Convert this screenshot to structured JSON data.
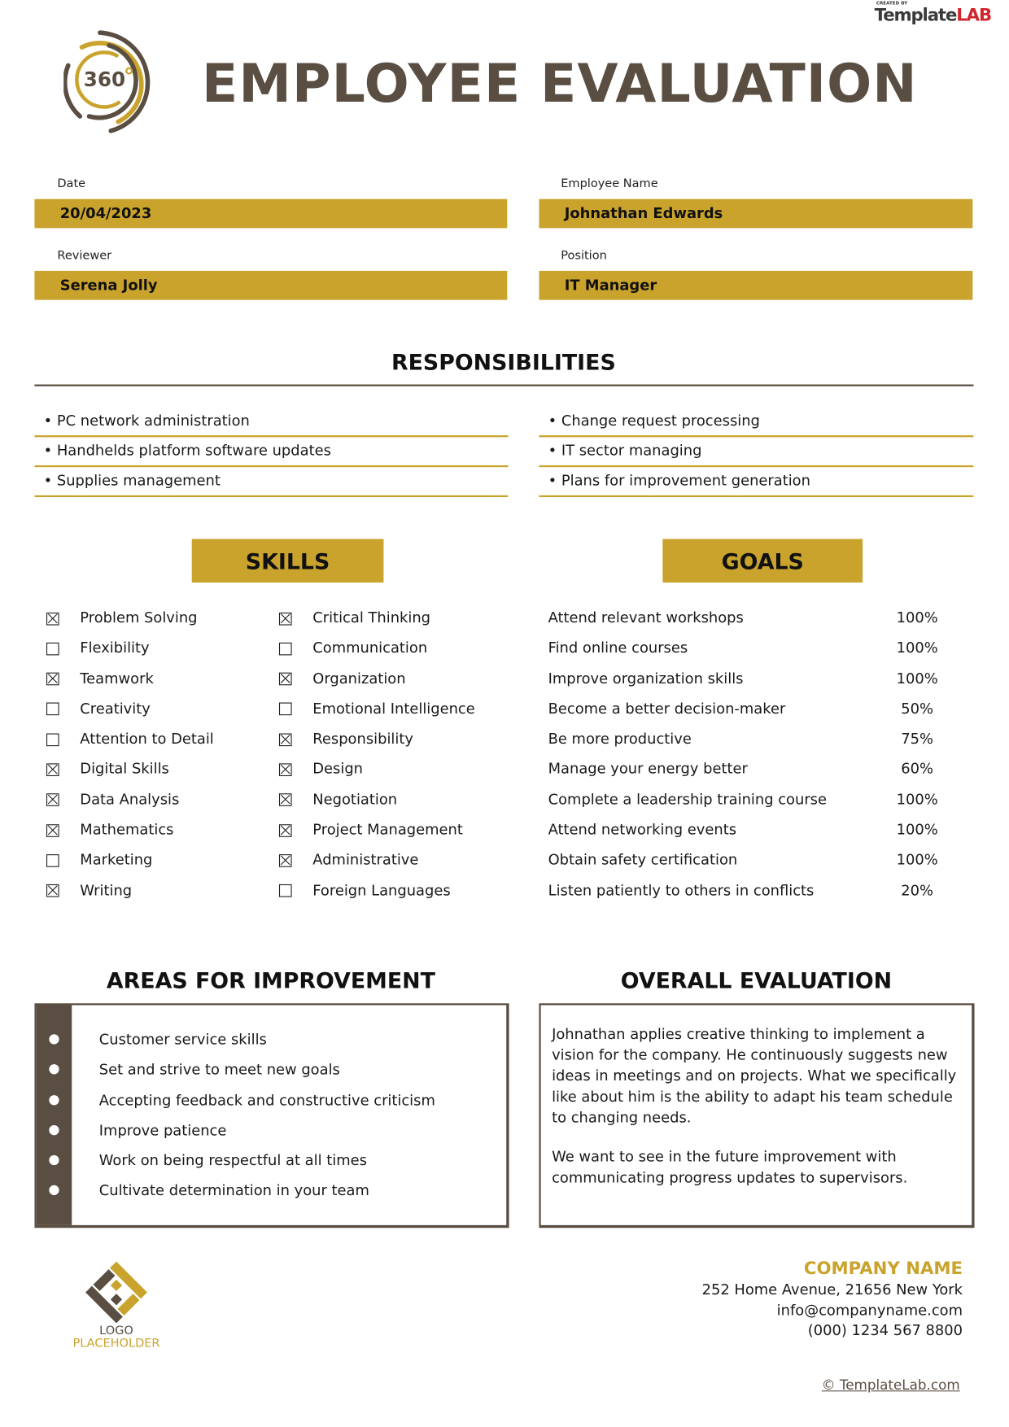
{
  "brand": {
    "created_by": "CREATED BY",
    "name_a": "Template",
    "name_b": "LAB"
  },
  "logo_text": "360",
  "title": "EMPLOYEE EVALUATION",
  "fields": [
    {
      "label": "Date",
      "value": "20/04/2023"
    },
    {
      "label": "Employee Name",
      "value": "Johnathan Edwards"
    },
    {
      "label": "Reviewer",
      "value": "Serena Jolly"
    },
    {
      "label": "Position",
      "value": "IT Manager"
    }
  ],
  "responsibilities": {
    "heading": "RESPONSIBILITIES",
    "left": [
      "• PC network administration",
      "• Handhelds platform software updates",
      "• Supplies management"
    ],
    "right": [
      "• Change request processing",
      "• IT sector managing",
      "• Plans for improvement generation"
    ]
  },
  "skills": {
    "heading": "SKILLS",
    "col1": [
      {
        "label": "Problem Solving",
        "checked": true
      },
      {
        "label": "Flexibility",
        "checked": false
      },
      {
        "label": "Teamwork",
        "checked": true
      },
      {
        "label": "Creativity",
        "checked": false
      },
      {
        "label": "Attention to Detail",
        "checked": false
      },
      {
        "label": "Digital Skills",
        "checked": true
      },
      {
        "label": "Data Analysis",
        "checked": true
      },
      {
        "label": "Mathematics",
        "checked": true
      },
      {
        "label": "Marketing",
        "checked": false
      },
      {
        "label": "Writing",
        "checked": true
      }
    ],
    "col2": [
      {
        "label": "Critical Thinking",
        "checked": true
      },
      {
        "label": "Communication",
        "checked": false
      },
      {
        "label": "Organization",
        "checked": true
      },
      {
        "label": "Emotional Intelligence",
        "checked": false
      },
      {
        "label": "Responsibility",
        "checked": true
      },
      {
        "label": "Design",
        "checked": true
      },
      {
        "label": "Negotiation",
        "checked": true
      },
      {
        "label": "Project Management",
        "checked": true
      },
      {
        "label": "Administrative",
        "checked": true
      },
      {
        "label": "Foreign Languages",
        "checked": false
      }
    ]
  },
  "goals": {
    "heading": "GOALS",
    "items": [
      {
        "label": "Attend relevant workshops",
        "pct": "100%"
      },
      {
        "label": "Find online courses",
        "pct": "100%"
      },
      {
        "label": "Improve organization skills",
        "pct": "100%"
      },
      {
        "label": "Become a better decision-maker",
        "pct": "50%"
      },
      {
        "label": "Be more productive",
        "pct": "75%"
      },
      {
        "label": "Manage your energy better",
        "pct": "60%"
      },
      {
        "label": "Complete a leadership training course",
        "pct": "100%"
      },
      {
        "label": "Attend networking events",
        "pct": "100%"
      },
      {
        "label": "Obtain safety certification",
        "pct": "100%"
      },
      {
        "label": "Listen patiently to others in conflicts",
        "pct": "20%"
      }
    ]
  },
  "improvement": {
    "heading": "AREAS FOR IMPROVEMENT",
    "items": [
      "Customer service skills",
      "Set and strive to meet new goals",
      "Accepting feedback and constructive criticism",
      "Improve patience",
      "Work on being respectful at all times",
      "Cultivate determination in your team"
    ]
  },
  "overall": {
    "heading": "OVERALL EVALUATION",
    "paragraphs": [
      "Johnathan applies creative thinking to implement a vision for the company. He continuously suggests new ideas in meetings and on projects. What we specifically like about him is the ability to adapt his team schedule to changing needs.",
      "We want to see in the future improvement with communicating progress updates to supervisors."
    ]
  },
  "footer": {
    "logo_line1": "LOGO",
    "logo_line2": "PLACEHOLDER",
    "company": "COMPANY NAME",
    "address": "252 Home Avenue, 21656 New York",
    "email": "info@companyname.com",
    "phone": "(000) 1234 567 8800",
    "credit": "© TemplateLab.com"
  },
  "colors": {
    "gold": "#c9a32c",
    "dark": "#5a4e42"
  }
}
